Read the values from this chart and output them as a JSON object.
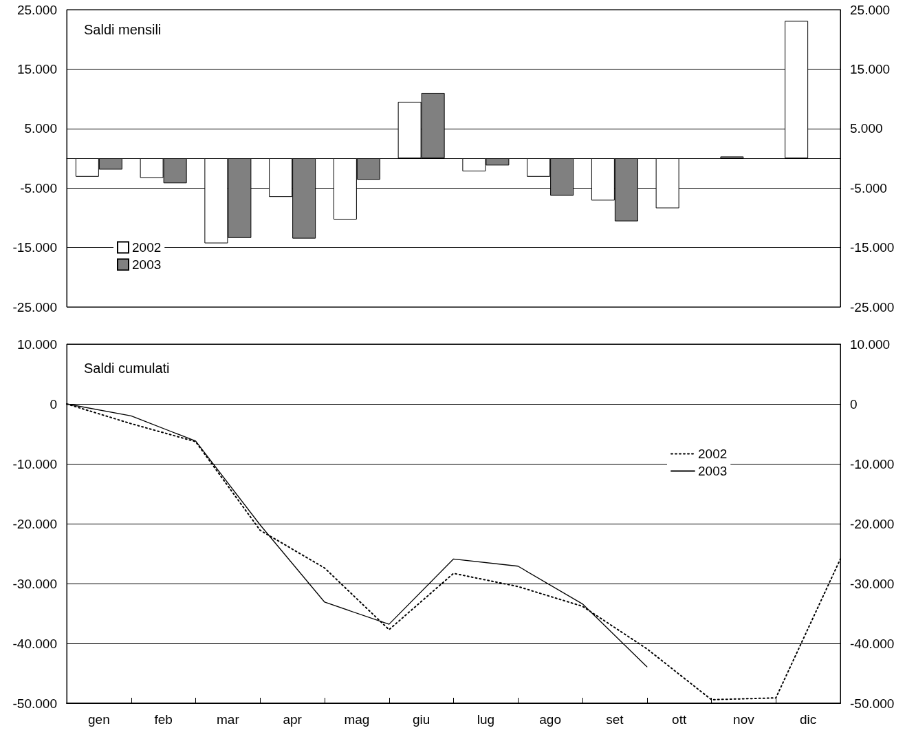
{
  "chart_data": [
    {
      "type": "bar",
      "title": "Saldi mensili",
      "categories": [
        null,
        null,
        null,
        null,
        null,
        null,
        null,
        null,
        null,
        null,
        null,
        null
      ],
      "series": [
        {
          "name": "2002",
          "color": "#ffffff",
          "values": [
            -3100,
            -3300,
            -14300,
            -6500,
            -10300,
            9500,
            -2200,
            -3100,
            -7100,
            -8400,
            300,
            23100
          ]
        },
        {
          "name": "2003",
          "color": "#808080",
          "values": [
            -1900,
            -4200,
            -13400,
            -13500,
            -3600,
            11000,
            -1200,
            -6300,
            -10600,
            null,
            null,
            null
          ]
        }
      ],
      "ylim": [
        -25000,
        25000
      ],
      "yticks": [
        {
          "value": -25000,
          "label": "-25.000"
        },
        {
          "value": -15000,
          "label": "-15.000"
        },
        {
          "value": -5000,
          "label": "-5.000"
        },
        {
          "value": 5000,
          "label": "5.000"
        },
        {
          "value": 15000,
          "label": "15.000"
        },
        {
          "value": 25000,
          "label": "25.000"
        }
      ],
      "y2lim": [
        -25000,
        25000
      ],
      "y2ticks": [
        {
          "value": -25000,
          "label": "-25.000"
        },
        {
          "value": -15000,
          "label": "-15.000"
        },
        {
          "value": -5000,
          "label": "-5.000"
        },
        {
          "value": 5000,
          "label": "5.000"
        },
        {
          "value": 15000,
          "label": "15.000"
        },
        {
          "value": 25000,
          "label": "25.000"
        }
      ],
      "grid": "y",
      "legend": "bottom left",
      "tick_labels": "y"
    },
    {
      "type": "line",
      "title": "Saldi cumulati",
      "categories": [
        null,
        "gen",
        null,
        "feb",
        null,
        "mar",
        null,
        "apr",
        null,
        "mag",
        null,
        "giu",
        null,
        "lug",
        null,
        "ago",
        null,
        "set",
        null,
        "ott",
        null,
        "nov",
        null,
        "dic",
        null
      ],
      "series": [
        {
          "name": "2002",
          "color": "#000000",
          "line_style": "dotted",
          "values": [
            0,
            null,
            -3300,
            null,
            -6300,
            null,
            -21100,
            null,
            -27400,
            null,
            -37700,
            null,
            -28300,
            null,
            -30500,
            null,
            -33800,
            null,
            -40900,
            null,
            -49400,
            null,
            -49100,
            null,
            -25900
          ]
        },
        {
          "name": "2003",
          "color": "#000000",
          "line_style": "solid",
          "values": [
            0,
            null,
            -2000,
            null,
            -6200,
            null,
            -20200,
            null,
            -33100,
            null,
            -36800,
            null,
            -25900,
            null,
            -27100,
            null,
            -33400,
            null,
            -43900,
            null,
            null,
            null,
            null,
            null,
            null
          ]
        }
      ],
      "ylim": [
        -50000,
        10000
      ],
      "yticks": [
        {
          "value": -50000,
          "label": "-50.000"
        },
        {
          "value": -40000,
          "label": "-40.000"
        },
        {
          "value": -30000,
          "label": "-30.000"
        },
        {
          "value": -20000,
          "label": "-20.000"
        },
        {
          "value": -10000,
          "label": "-10.000"
        },
        0,
        {
          "value": 10000,
          "label": "10.000"
        }
      ],
      "y2lim": [
        -50000,
        10000
      ],
      "y2ticks": [
        {
          "value": -50000,
          "label": "-50.000"
        },
        {
          "value": -40000,
          "label": "-40.000"
        },
        {
          "value": -30000,
          "label": "-30.000"
        },
        {
          "value": -20000,
          "label": "-20.000"
        },
        {
          "value": -10000,
          "label": "-10.000"
        },
        0,
        {
          "value": 10000,
          "label": "10.000"
        }
      ],
      "grid": "y",
      "legend": "right",
      "marker": "none"
    }
  ]
}
